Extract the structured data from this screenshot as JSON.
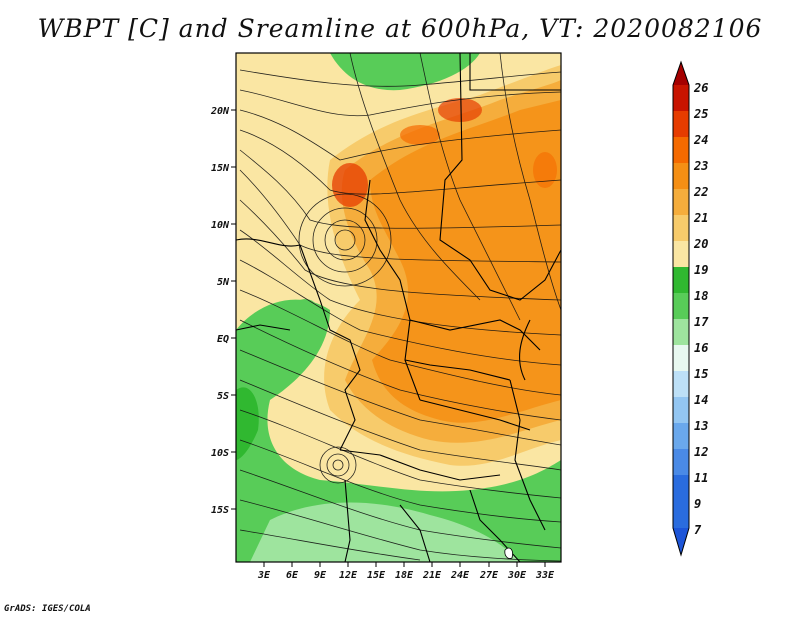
{
  "title": "WBPT [C] and Sreamline at 600hPa, VT: 2020082106",
  "credit": "GrADS: IGES/COLA",
  "map": {
    "lat_labels": [
      "20N",
      "15N",
      "10N",
      "5N",
      "EQ",
      "5S",
      "10S",
      "15S"
    ],
    "lon_labels": [
      "3E",
      "6E",
      "9E",
      "12E",
      "15E",
      "18E",
      "21E",
      "24E",
      "27E",
      "30E",
      "33E"
    ]
  },
  "colorbar": {
    "labels": [
      "26",
      "25",
      "24",
      "23",
      "22",
      "21",
      "20",
      "19",
      "18",
      "17",
      "16",
      "15",
      "14",
      "13",
      "12",
      "11",
      "9",
      "7"
    ],
    "colors": [
      "#a50000",
      "#c81400",
      "#e63c00",
      "#f56a00",
      "#f58f14",
      "#f5ad3c",
      "#f7cb6b",
      "#fae6a3",
      "#30b830",
      "#58cc58",
      "#9ee49e",
      "#e8f8f0",
      "#bde0f7",
      "#93c6f2",
      "#6aa8ec",
      "#4a8ae6",
      "#2a6cde",
      "#1d55d8"
    ]
  }
}
